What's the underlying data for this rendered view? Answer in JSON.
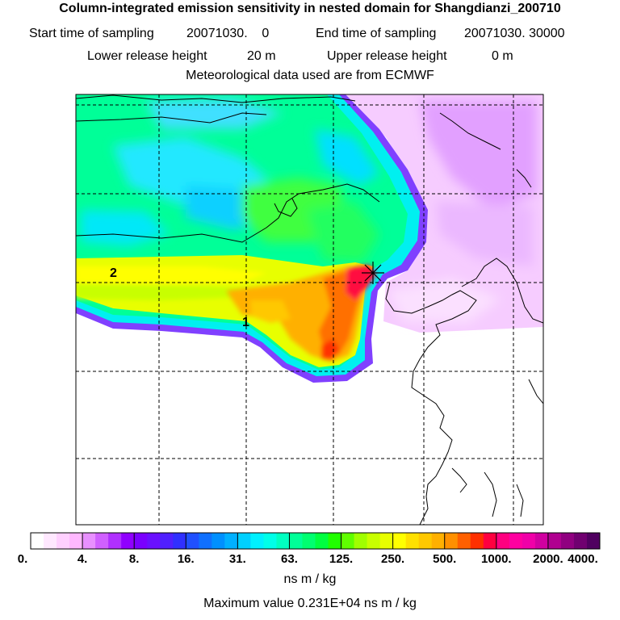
{
  "header": {
    "title": "Column-integrated emission sensitivity in nested domain for Shangdianzi_200710",
    "start_label": "Start time of sampling",
    "start_value": "20071030.    0",
    "end_label": "End time of sampling",
    "end_value": "20071030. 30000",
    "lower_label": "Lower release height",
    "lower_value": "20 m",
    "upper_label": "Upper release height",
    "upper_value": "0 m",
    "met_line": "Meteorological data used are from ECMWF"
  },
  "map": {
    "labels": {
      "route_1": "1",
      "route_2": "2"
    },
    "station_marker": "star-marker",
    "colors": {
      "outside_footprint": "#ffffff",
      "grid": "#000000"
    }
  },
  "colorbar": {
    "tick_labels": [
      "0.",
      "4.",
      "8.",
      "16.",
      "31.",
      "63.",
      "125.",
      "250.",
      "500.",
      "1000.",
      "2000.",
      "4000."
    ],
    "bins": [
      "#ffffff",
      "#ffe8ff",
      "#ffd0ff",
      "#ffb8ff",
      "#e890ff",
      "#d060ff",
      "#b030ff",
      "#9000ff",
      "#7a00ff",
      "#6a10ff",
      "#5020ff",
      "#3030ff",
      "#2050ff",
      "#1070ff",
      "#0090ff",
      "#00b0ff",
      "#00d0ff",
      "#00f0ff",
      "#00ffe8",
      "#00ffc0",
      "#00ff98",
      "#00ff70",
      "#00ff40",
      "#20ff00",
      "#60ff00",
      "#a0ff00",
      "#c8ff00",
      "#e8ff00",
      "#ffff00",
      "#ffe000",
      "#ffc800",
      "#ffb000",
      "#ff9000",
      "#ff6000",
      "#ff3000",
      "#ff0040",
      "#ff0080",
      "#ff00a0",
      "#f000a8",
      "#d000a0",
      "#b00090",
      "#900080",
      "#700070",
      "#500060"
    ],
    "unit": "ns m / kg",
    "max_line": "Maximum value  0.231E+04 ns m / kg"
  }
}
